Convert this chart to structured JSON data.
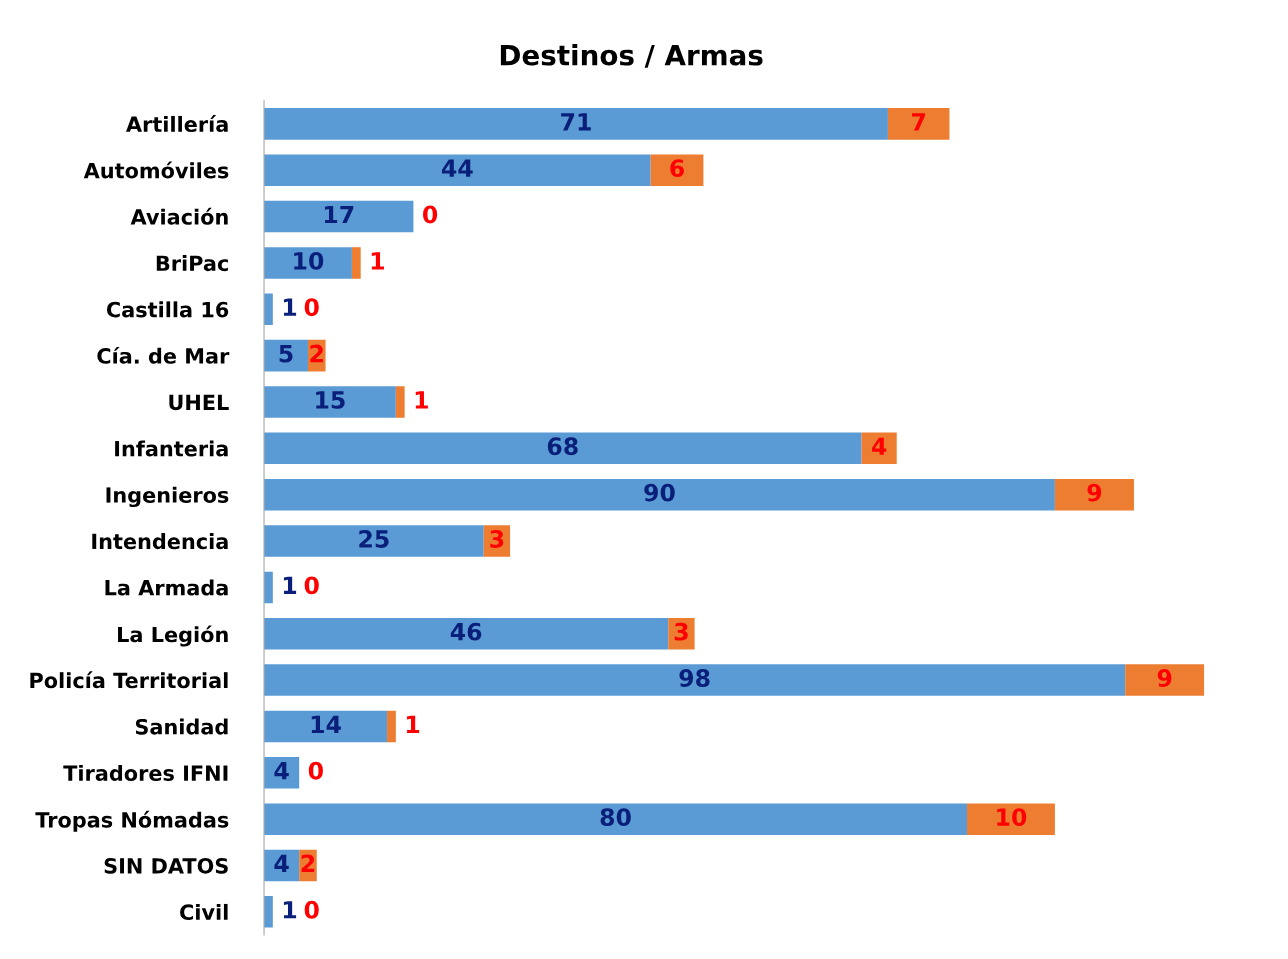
{
  "chart_data": {
    "type": "bar",
    "orientation": "horizontal",
    "stacked": true,
    "title": "Destinos / Armas",
    "data_labels": true,
    "legend": false,
    "grid": false,
    "tick_labels": "y",
    "categories": [
      "Artillería",
      "Automóviles",
      "Aviación",
      "BriPac",
      "Castilla 16",
      "Cía. de Mar",
      "UHEL",
      "Infanteria",
      "Ingenieros",
      "Intendencia",
      "La Armada",
      "La Legión",
      "Policía Territorial",
      "Sanidad",
      "Tiradores IFNI",
      "Tropas Nómadas",
      "SIN DATOS",
      "Civil"
    ],
    "series": [
      {
        "color": "#5b9bd5",
        "values": [
          71,
          44,
          17,
          10,
          1,
          5,
          15,
          68,
          90,
          25,
          1,
          46,
          98,
          14,
          4,
          80,
          4,
          1
        ]
      },
      {
        "color": "#ed7d31",
        "values": [
          7,
          6,
          0,
          1,
          0,
          2,
          1,
          4,
          9,
          3,
          0,
          3,
          9,
          1,
          0,
          10,
          2,
          0
        ]
      }
    ]
  }
}
